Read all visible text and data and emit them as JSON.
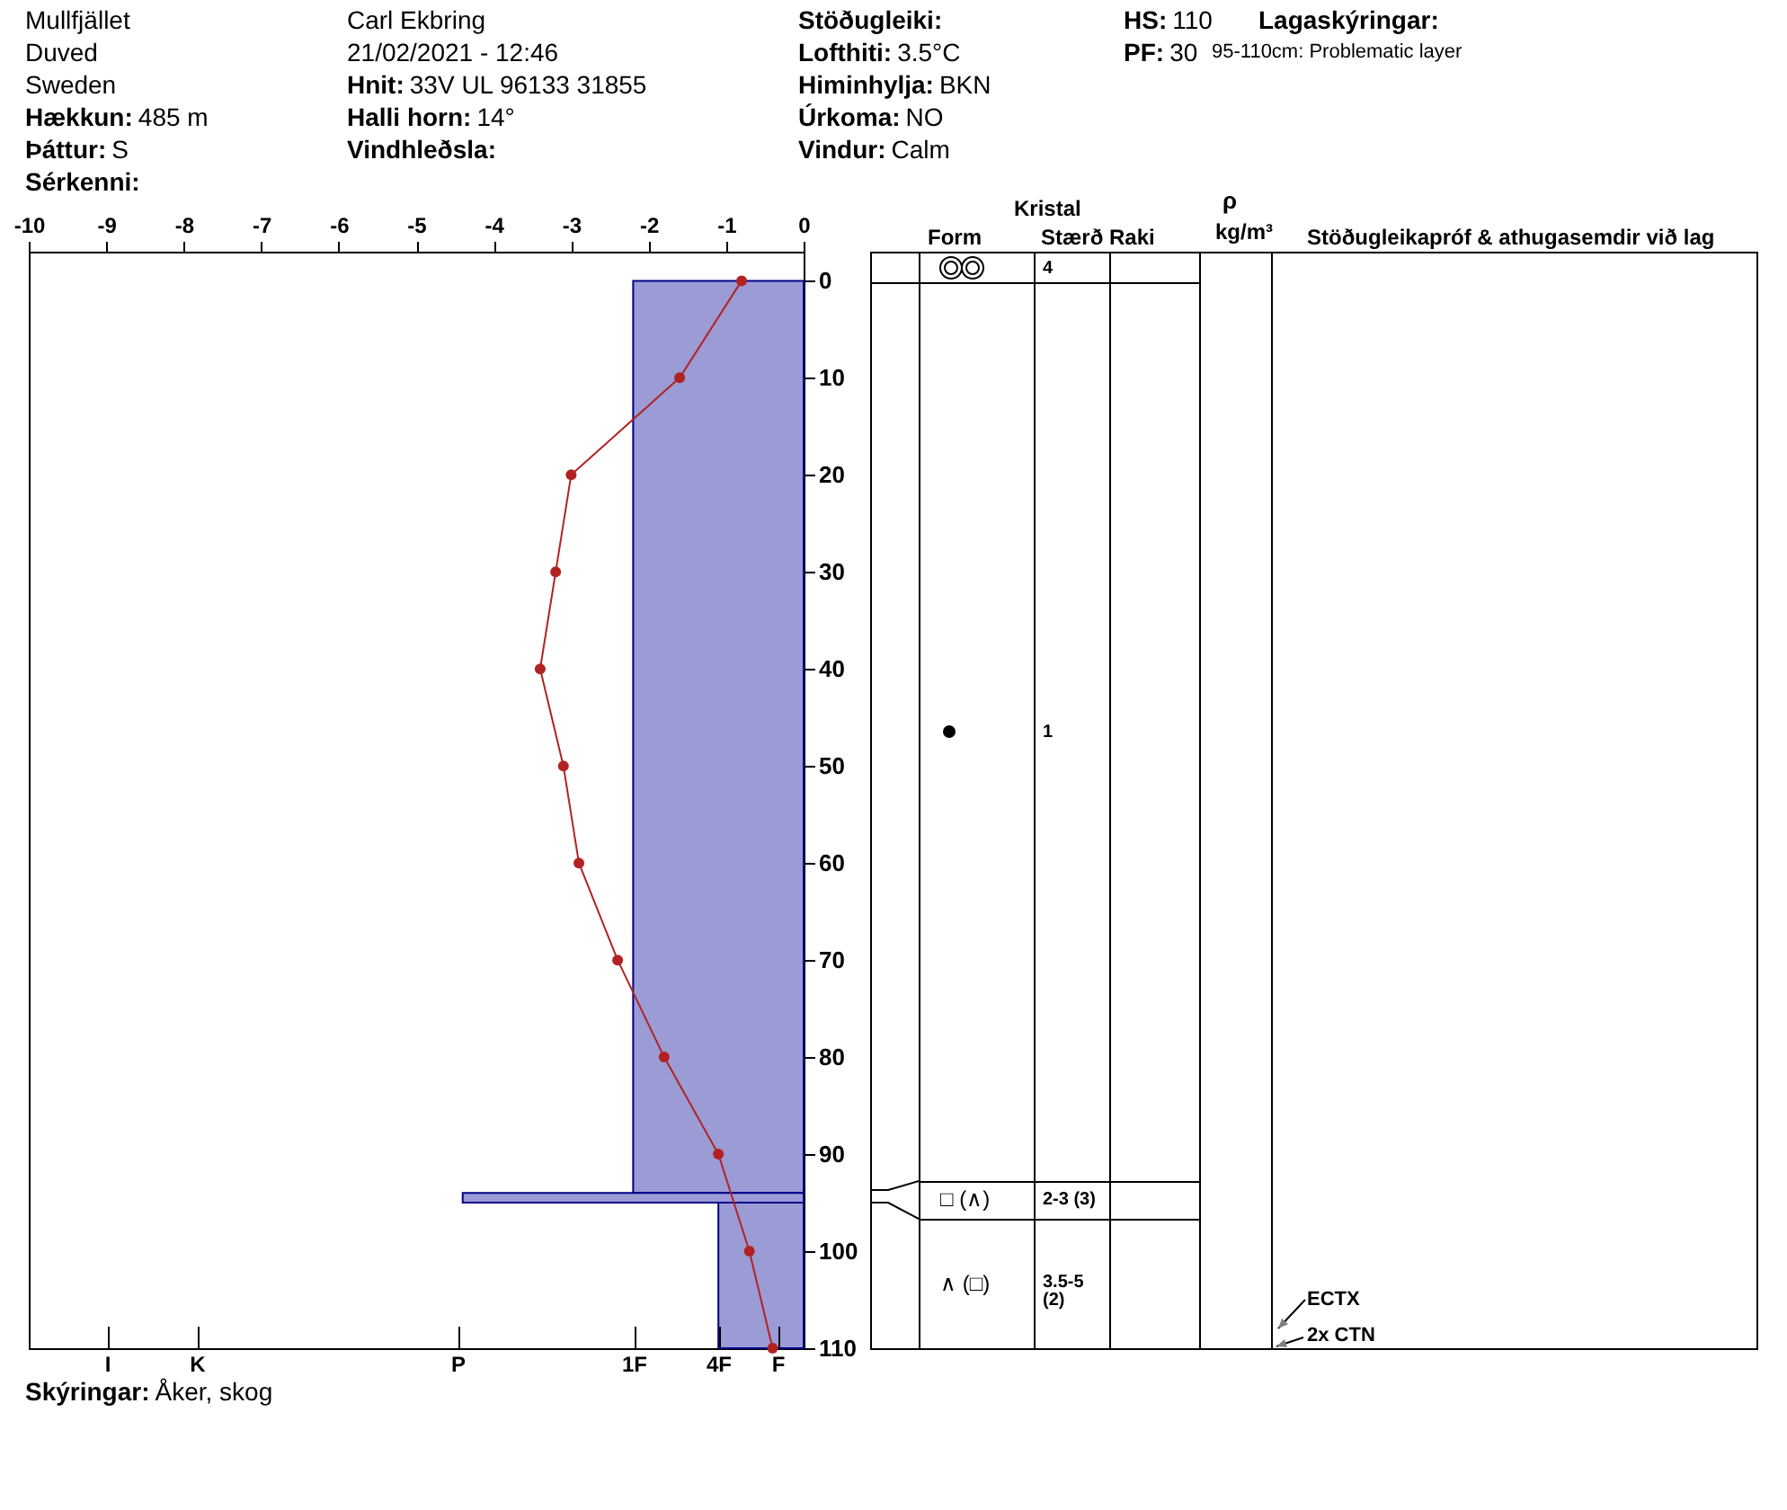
{
  "chart_data": [
    {
      "type": "line",
      "orientation": "horizontal",
      "annotations": [
        "Mullfjället",
        "Duved",
        "Sweden",
        "Hækkun: 485 m",
        "Þáttur: S",
        "Sérkenni:",
        "Carl Ekbring",
        "21/02/2021 - 12:46",
        "Hnit: 33V UL 96133 31855",
        "Halli horn: 14°",
        "Vindhleðsla:",
        "Stöðugleiki:",
        "Lofthiti: 3.5°C",
        "Himinhylja: BKN",
        "Úrkoma: NO",
        "Vindur:  Calm",
        "HS:110",
        "PF:30",
        "Lagaskýringar:",
        "95-110cm: Problematic layer",
        "Skýringar: Åker, skog",
        "I",
        "K",
        "P",
        "1F",
        "4F",
        "F"
      ],
      "xlim": [
        -10,
        0
      ],
      "xticks": [
        -10,
        -9,
        -8,
        -7,
        -6,
        -5,
        -4,
        -3,
        -2,
        -1,
        0
      ],
      "ylim": [
        110,
        -3
      ],
      "yticks": [
        0,
        10,
        20,
        30,
        40,
        50,
        60,
        70,
        80,
        90,
        100,
        110
      ],
      "marker": "circle",
      "series": [
        {
          "type": "histogram",
          "bins": [
            0,
            94,
            95,
            110
          ],
          "values": [
            -2.2,
            -4.4,
            -1.1
          ],
          "color": "#9b9bd5"
        },
        {
          "type": "line",
          "color": "#b22222",
          "x": [
            0,
            10,
            20,
            30,
            40,
            50,
            60,
            70,
            80,
            90,
            100,
            110
          ],
          "values": [
            -0.8,
            -1.6,
            -3.0,
            -3.2,
            -3.4,
            -3.1,
            -2.9,
            -2.4,
            -1.8,
            -1.1,
            -0.7,
            -0.4
          ]
        }
      ]
    },
    {
      "type": "other",
      "annotations": [
        "Kristal",
        "Form",
        "Stærð",
        "Raki",
        "ρ",
        "kg/m³",
        "Stöðugleikapróf & athugasemdir við lag",
        "4",
        "1",
        "□ (∧)",
        "2-3 (3)",
        "∧ (□)",
        "3.5-5 (2)",
        "ECTX",
        "2x CTN"
      ]
    }
  ]
}
